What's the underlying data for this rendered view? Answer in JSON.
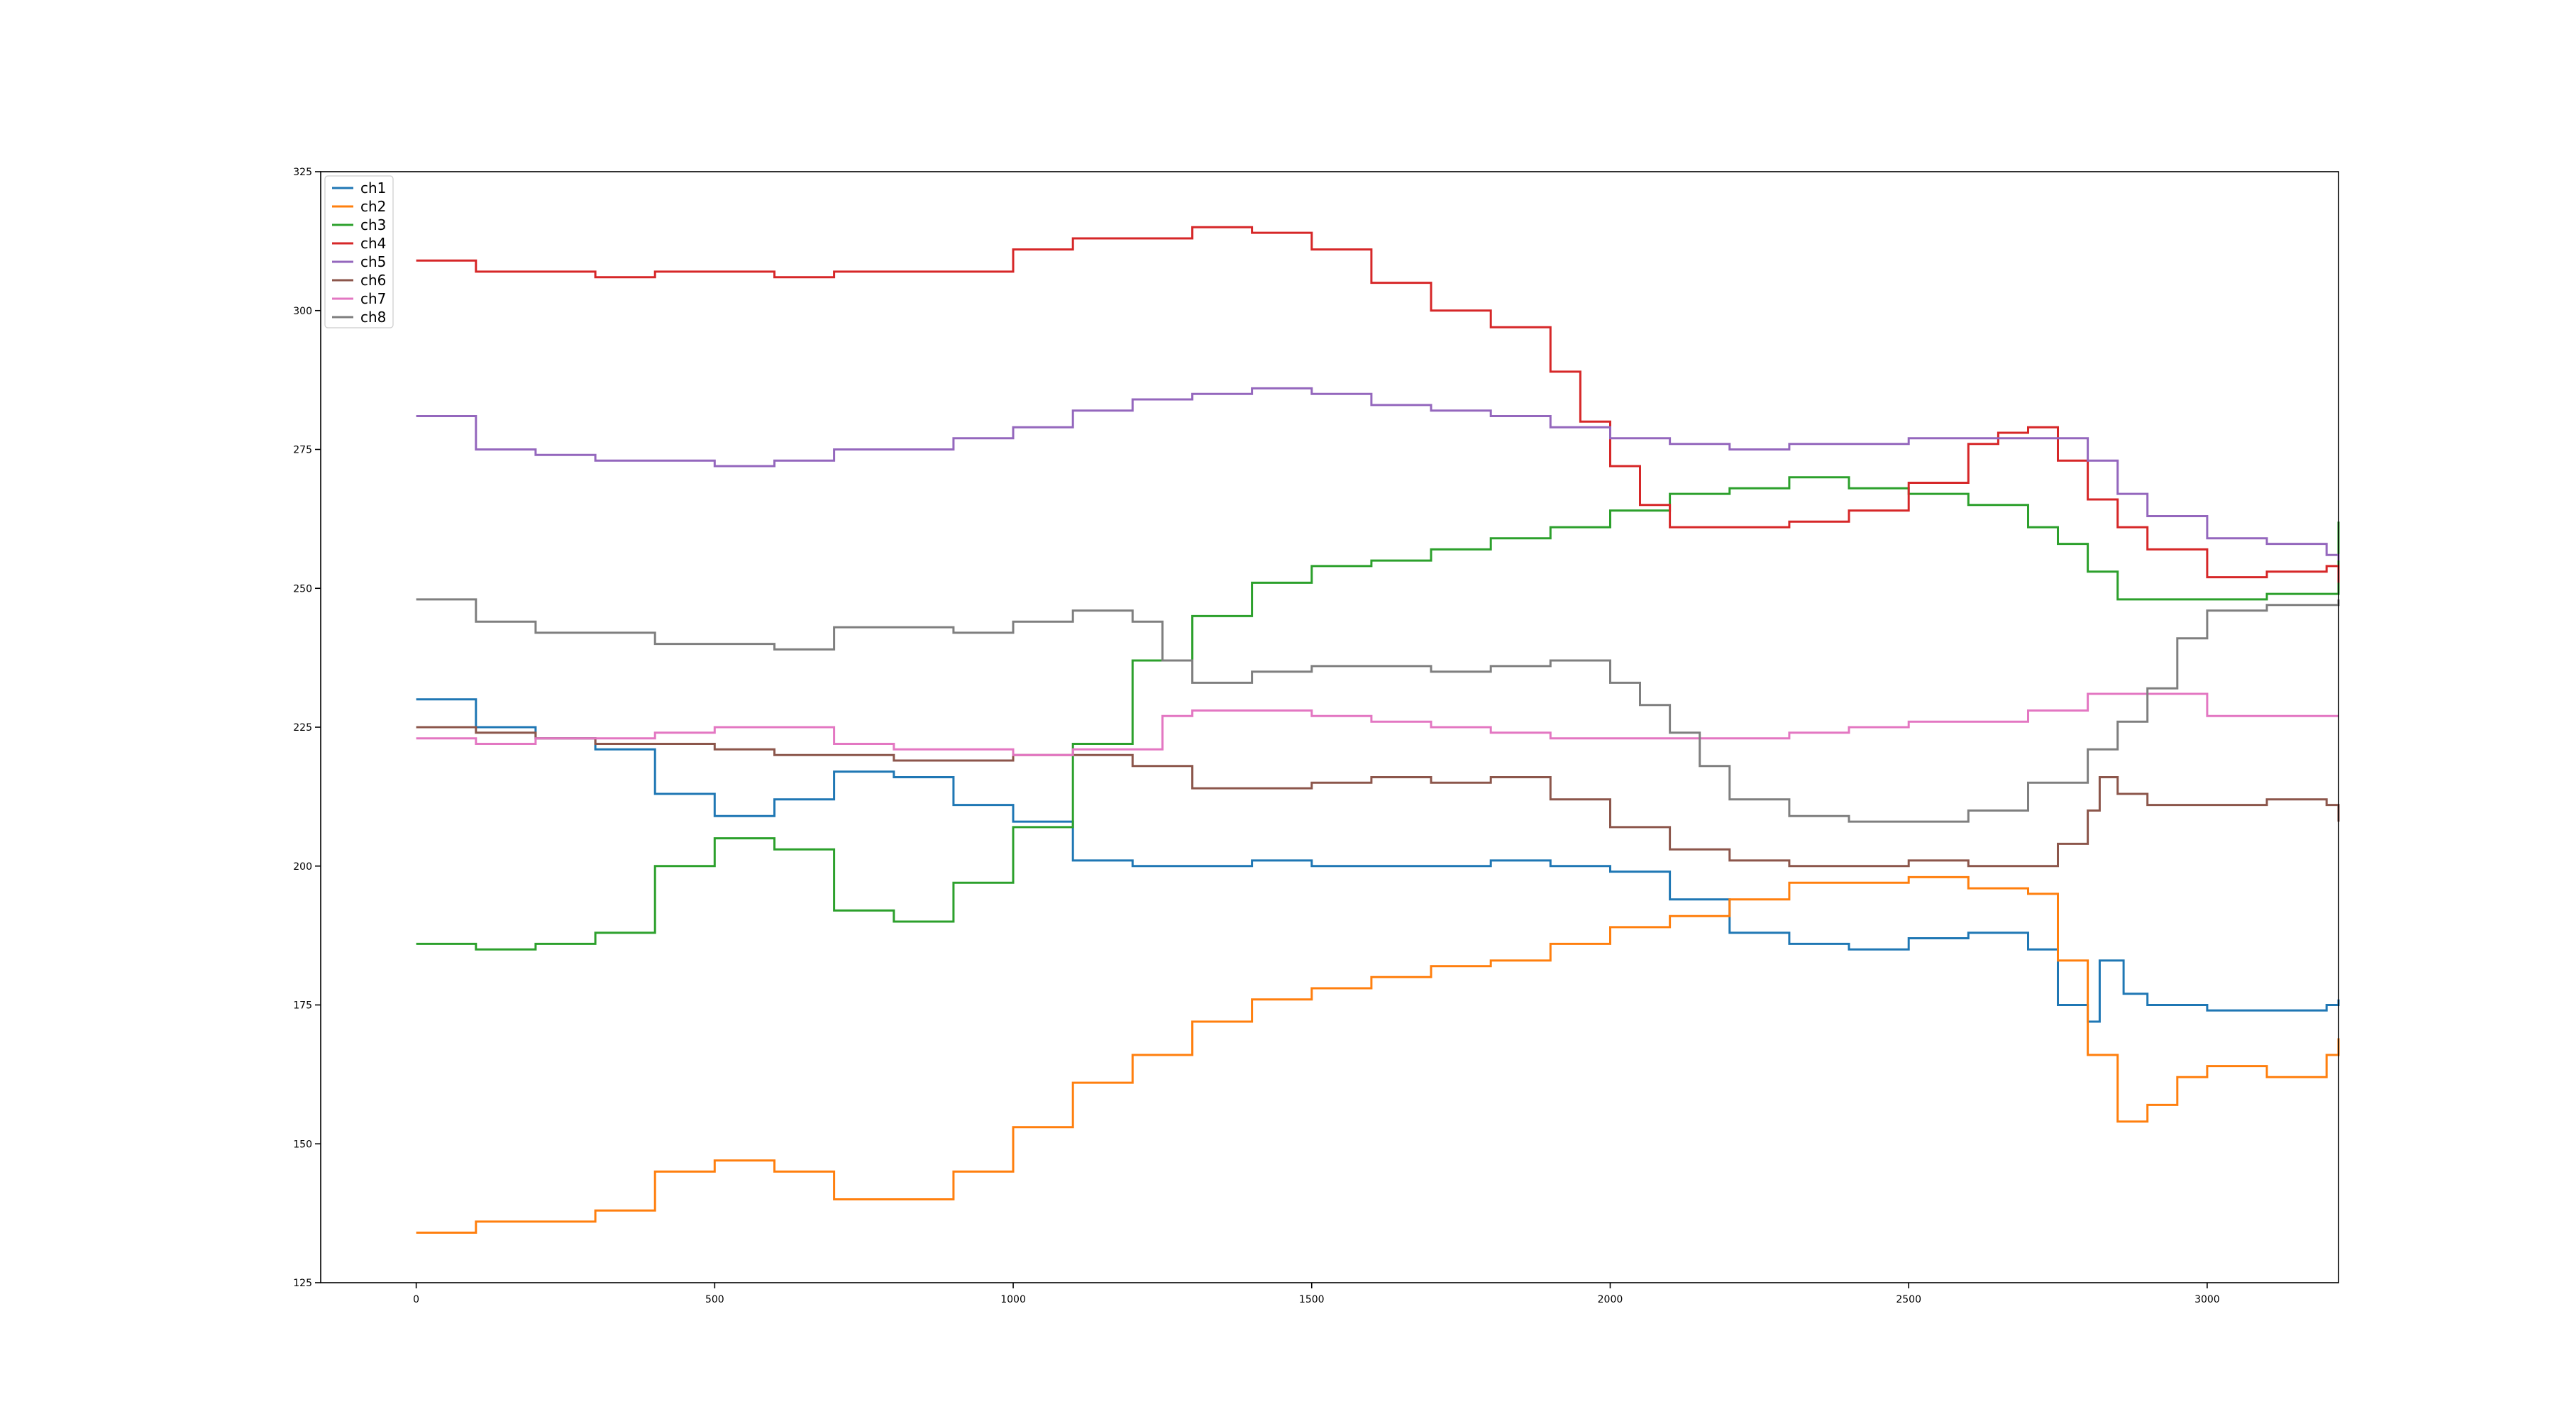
{
  "chart_data": {
    "type": "line",
    "title": "",
    "xlabel": "",
    "ylabel": "",
    "xlim": [
      -160,
      3220
    ],
    "ylim": [
      125,
      325
    ],
    "xticks": [
      0,
      500,
      1000,
      1500,
      2000,
      2500,
      3000
    ],
    "yticks": [
      125,
      150,
      175,
      200,
      225,
      250,
      275,
      300,
      325
    ],
    "xtick_labels": [
      "0",
      "500",
      "1000",
      "1500",
      "2000",
      "2500",
      "3000"
    ],
    "ytick_labels": [
      "125",
      "150",
      "175",
      "200",
      "225",
      "250",
      "275",
      "300",
      "325"
    ],
    "grid": false,
    "legend_position": "top-left",
    "drawstyle": "steps",
    "series": [
      {
        "name": "ch1",
        "color": "#1f77b4",
        "x": [
          0,
          100,
          200,
          300,
          400,
          500,
          600,
          700,
          800,
          900,
          1000,
          1100,
          1200,
          1300,
          1400,
          1500,
          1600,
          1700,
          1800,
          1900,
          2000,
          2100,
          2200,
          2300,
          2400,
          2500,
          2600,
          2700,
          2750,
          2800,
          2820,
          2860,
          2900,
          3000,
          3100,
          3200,
          3220
        ],
        "y": [
          230,
          225,
          223,
          221,
          213,
          209,
          212,
          217,
          216,
          211,
          208,
          201,
          200,
          200,
          201,
          200,
          200,
          200,
          201,
          200,
          199,
          194,
          188,
          186,
          185,
          187,
          188,
          185,
          175,
          172,
          183,
          177,
          175,
          174,
          174,
          175,
          176
        ]
      },
      {
        "name": "ch2",
        "color": "#ff7f0e",
        "x": [
          0,
          100,
          200,
          300,
          400,
          500,
          600,
          700,
          800,
          900,
          1000,
          1100,
          1200,
          1300,
          1400,
          1500,
          1600,
          1700,
          1800,
          1900,
          2000,
          2100,
          2200,
          2300,
          2400,
          2500,
          2600,
          2700,
          2750,
          2800,
          2850,
          2900,
          2950,
          3000,
          3100,
          3200,
          3220
        ],
        "y": [
          134,
          136,
          136,
          138,
          145,
          147,
          145,
          140,
          140,
          145,
          153,
          161,
          166,
          172,
          176,
          178,
          180,
          182,
          183,
          186,
          189,
          191,
          194,
          197,
          197,
          198,
          196,
          195,
          183,
          166,
          154,
          157,
          162,
          164,
          162,
          166,
          169
        ]
      },
      {
        "name": "ch3",
        "color": "#2ca02c",
        "x": [
          0,
          100,
          200,
          300,
          400,
          500,
          550,
          600,
          700,
          800,
          900,
          1000,
          1100,
          1200,
          1300,
          1400,
          1500,
          1600,
          1700,
          1800,
          1900,
          2000,
          2100,
          2200,
          2300,
          2400,
          2500,
          2600,
          2700,
          2750,
          2800,
          2850,
          2900,
          3000,
          3100,
          3200,
          3220
        ],
        "y": [
          186,
          185,
          186,
          188,
          200,
          205,
          205,
          203,
          192,
          190,
          197,
          207,
          222,
          237,
          245,
          251,
          254,
          255,
          257,
          259,
          261,
          264,
          267,
          268,
          270,
          268,
          267,
          265,
          261,
          258,
          253,
          248,
          248,
          248,
          249,
          249,
          262
        ]
      },
      {
        "name": "ch4",
        "color": "#d62728",
        "x": [
          0,
          100,
          200,
          300,
          400,
          500,
          600,
          700,
          800,
          900,
          1000,
          1100,
          1200,
          1300,
          1400,
          1500,
          1600,
          1700,
          1800,
          1900,
          1950,
          2000,
          2050,
          2100,
          2200,
          2300,
          2400,
          2500,
          2600,
          2650,
          2700,
          2750,
          2800,
          2850,
          2900,
          3000,
          3100,
          3200,
          3220
        ],
        "y": [
          309,
          307,
          307,
          306,
          307,
          307,
          306,
          307,
          307,
          307,
          311,
          313,
          313,
          315,
          314,
          311,
          305,
          300,
          297,
          289,
          280,
          272,
          265,
          261,
          261,
          262,
          264,
          269,
          276,
          278,
          279,
          273,
          266,
          261,
          257,
          252,
          253,
          254,
          251
        ]
      },
      {
        "name": "ch5",
        "color": "#9467bd",
        "x": [
          0,
          100,
          200,
          300,
          400,
          500,
          600,
          700,
          800,
          900,
          1000,
          1100,
          1200,
          1300,
          1400,
          1500,
          1600,
          1700,
          1800,
          1900,
          2000,
          2100,
          2200,
          2300,
          2400,
          2500,
          2600,
          2700,
          2800,
          2850,
          2900,
          3000,
          3100,
          3200,
          3220
        ],
        "y": [
          281,
          275,
          274,
          273,
          273,
          272,
          273,
          275,
          275,
          277,
          279,
          282,
          284,
          285,
          286,
          285,
          283,
          282,
          281,
          279,
          277,
          276,
          275,
          276,
          276,
          277,
          277,
          277,
          273,
          267,
          263,
          259,
          258,
          256,
          255
        ]
      },
      {
        "name": "ch6",
        "color": "#8c564b",
        "x": [
          0,
          100,
          200,
          300,
          400,
          500,
          600,
          700,
          800,
          900,
          1000,
          1100,
          1200,
          1300,
          1400,
          1500,
          1600,
          1700,
          1800,
          1900,
          2000,
          2100,
          2200,
          2300,
          2400,
          2500,
          2600,
          2700,
          2750,
          2800,
          2820,
          2850,
          2900,
          3000,
          3100,
          3200,
          3220
        ],
        "y": [
          225,
          224,
          223,
          222,
          222,
          221,
          220,
          220,
          219,
          219,
          220,
          220,
          218,
          214,
          214,
          215,
          216,
          215,
          216,
          212,
          207,
          203,
          201,
          200,
          200,
          201,
          200,
          200,
          204,
          210,
          216,
          213,
          211,
          211,
          212,
          211,
          208
        ]
      },
      {
        "name": "ch7",
        "color": "#e377c2",
        "x": [
          0,
          100,
          200,
          300,
          400,
          500,
          600,
          700,
          800,
          900,
          1000,
          1100,
          1200,
          1250,
          1300,
          1400,
          1500,
          1600,
          1700,
          1800,
          1900,
          2000,
          2100,
          2200,
          2300,
          2400,
          2500,
          2600,
          2700,
          2800,
          2900,
          3000,
          3100,
          3200,
          3220
        ],
        "y": [
          223,
          222,
          223,
          223,
          224,
          225,
          225,
          222,
          221,
          221,
          220,
          221,
          221,
          227,
          228,
          228,
          227,
          226,
          225,
          224,
          223,
          223,
          223,
          223,
          224,
          225,
          226,
          226,
          228,
          231,
          231,
          227,
          227,
          227,
          227
        ]
      },
      {
        "name": "ch8",
        "color": "#7f7f7f",
        "x": [
          0,
          100,
          200,
          300,
          400,
          500,
          600,
          700,
          800,
          900,
          1000,
          1100,
          1150,
          1200,
          1250,
          1300,
          1400,
          1500,
          1600,
          1700,
          1800,
          1900,
          2000,
          2050,
          2100,
          2150,
          2200,
          2300,
          2400,
          2500,
          2600,
          2700,
          2800,
          2850,
          2900,
          2950,
          3000,
          3100,
          3200,
          3220
        ],
        "y": [
          248,
          244,
          242,
          242,
          240,
          240,
          239,
          243,
          243,
          242,
          244,
          246,
          246,
          244,
          237,
          233,
          235,
          236,
          236,
          235,
          236,
          237,
          233,
          229,
          224,
          218,
          212,
          209,
          208,
          208,
          210,
          215,
          221,
          226,
          232,
          241,
          246,
          247,
          247,
          248
        ]
      }
    ]
  }
}
